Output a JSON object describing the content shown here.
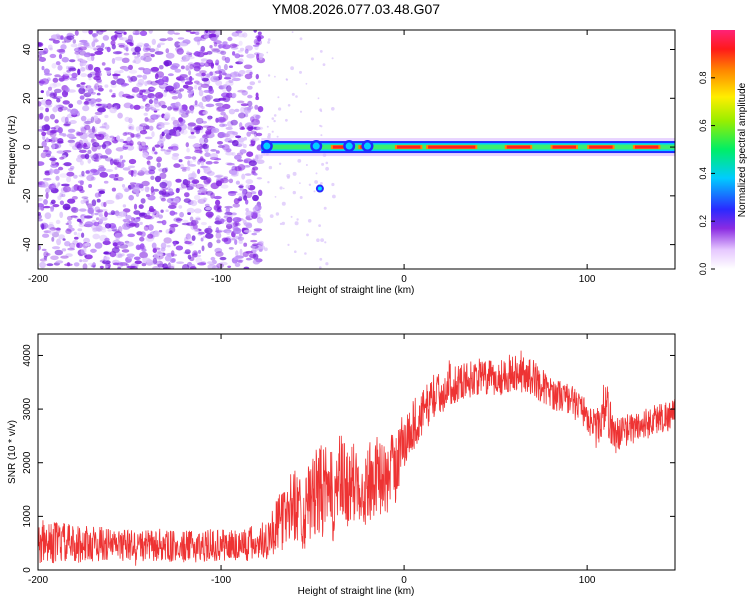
{
  "title": "YM08.2026.077.03.48.G07",
  "chart_data": [
    {
      "type": "heatmap",
      "xlabel": "Height of straight line (km)",
      "ylabel": "Frequency (Hz)",
      "xlim": [
        -200,
        148
      ],
      "ylim": [
        -50,
        48
      ],
      "xticks": [
        -200,
        -100,
        0,
        100
      ],
      "yticks": [
        -40,
        -20,
        0,
        20,
        40
      ],
      "colorbar": {
        "label": "Normalized spectral amplitude",
        "range": [
          0,
          1
        ],
        "ticks": [
          0,
          0.2,
          0.4,
          0.6,
          0.8
        ]
      },
      "features": [
        {
          "name": "noise region",
          "x_range": [
            -200,
            -78
          ],
          "y_range": [
            -50,
            48
          ],
          "amplitude": 0.15
        },
        {
          "name": "carrier line",
          "x_range": [
            -78,
            148
          ],
          "frequency": 0,
          "amplitude_peak": 1.0
        },
        {
          "name": "isolated spot",
          "x": -46,
          "frequency": -17,
          "amplitude": 0.4
        }
      ]
    },
    {
      "type": "line",
      "xlabel": "Height of straight line (km)",
      "ylabel": "SNR (10 * v/v)",
      "xlim": [
        -200,
        148
      ],
      "ylim": [
        0,
        4400
      ],
      "xticks": [
        -200,
        -100,
        0,
        100
      ],
      "yticks": [
        0,
        1000,
        2000,
        3000,
        4000
      ],
      "series": [
        {
          "name": "SNR",
          "color": "#ee3333",
          "x": [
            -200,
            -190,
            -180,
            -170,
            -160,
            -150,
            -140,
            -130,
            -120,
            -110,
            -100,
            -90,
            -80,
            -75,
            -70,
            -65,
            -60,
            -55,
            -50,
            -45,
            -40,
            -35,
            -30,
            -25,
            -20,
            -15,
            -10,
            -5,
            0,
            5,
            10,
            15,
            20,
            25,
            30,
            40,
            50,
            60,
            70,
            80,
            90,
            100,
            105,
            110,
            115,
            120,
            130,
            140,
            148
          ],
          "y": [
            450,
            520,
            480,
            500,
            470,
            460,
            450,
            440,
            430,
            450,
            460,
            470,
            500,
            600,
            800,
            1000,
            1250,
            1050,
            1350,
            1500,
            1300,
            1650,
            1500,
            1700,
            1550,
            1800,
            1650,
            1950,
            2400,
            2700,
            2900,
            3200,
            3300,
            3450,
            3500,
            3600,
            3550,
            3700,
            3600,
            3300,
            3200,
            2900,
            2600,
            3100,
            2500,
            2600,
            2700,
            2850,
            2900
          ],
          "spread": [
            350,
            400,
            350,
            350,
            300,
            300,
            300,
            300,
            300,
            300,
            300,
            350,
            350,
            400,
            500,
            600,
            700,
            700,
            800,
            900,
            900,
            900,
            800,
            800,
            800,
            700,
            700,
            700,
            600,
            500,
            450,
            400,
            400,
            400,
            350,
            350,
            350,
            350,
            350,
            300,
            300,
            300,
            350,
            500,
            350,
            300,
            300,
            300,
            300
          ]
        }
      ]
    }
  ]
}
